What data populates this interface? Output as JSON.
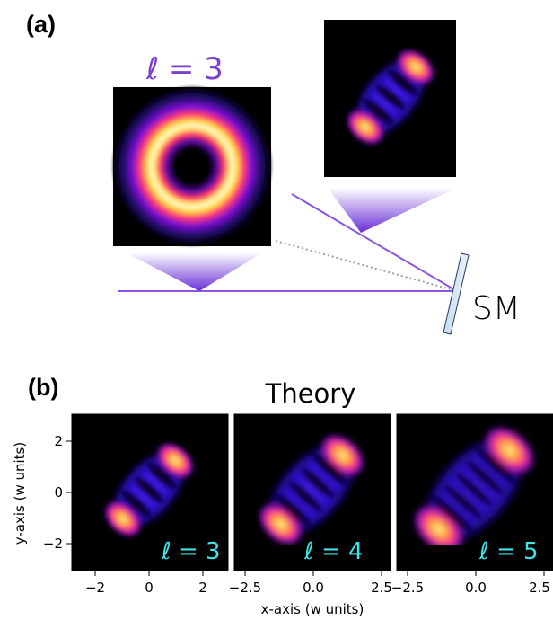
{
  "panel_a": {
    "label": "(a)",
    "mode_label": "ℓ = 3",
    "mirror_label": "SM"
  },
  "panel_b": {
    "label": "(b)",
    "title": "Theory",
    "ylabel": "y-axis (w units)",
    "xlabel": "x-axis (w units)",
    "y_ticks": [
      "2",
      "0",
      "−2"
    ],
    "plots": [
      {
        "mode_label": "ℓ = 3",
        "x_ticks": [
          "−2",
          "0",
          "2"
        ]
      },
      {
        "mode_label": "ℓ = 4",
        "x_ticks": [
          "−2.5",
          "0.0",
          "2.5"
        ]
      },
      {
        "mode_label": "ℓ = 5",
        "x_ticks": [
          "−2.5",
          "0.0",
          "2.5"
        ]
      }
    ]
  },
  "colors": {
    "beam": "#8a55e6",
    "mode_label": "#7a3fd0",
    "plot_label": "#3fe3e8"
  }
}
